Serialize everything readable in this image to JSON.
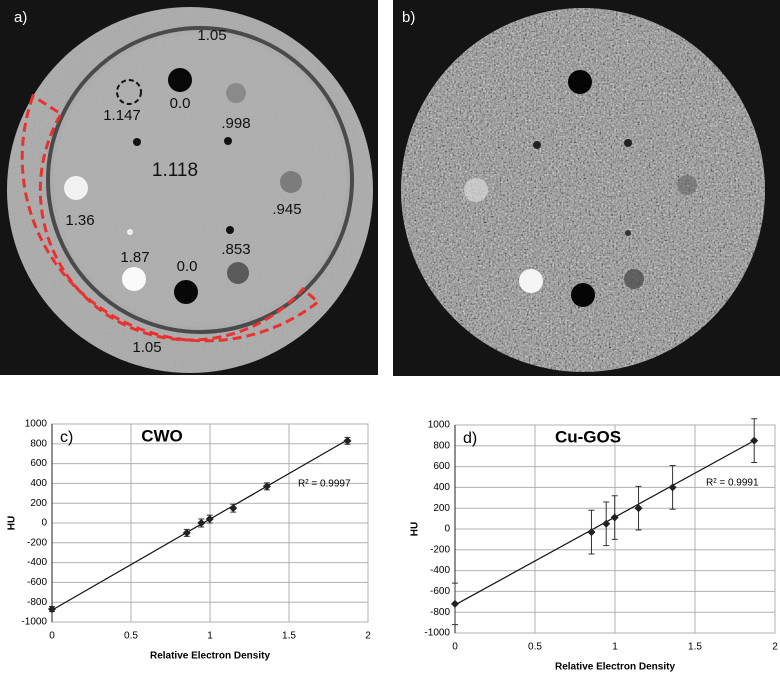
{
  "panels": {
    "a": {
      "label": "a)",
      "annotations": [
        "1.05",
        "0.0",
        "1.147",
        ".998",
        "1.118",
        "1.36",
        ".945",
        "1.87",
        "0.0",
        ".853",
        "1.05"
      ]
    },
    "b": {
      "label": "b)"
    }
  },
  "chart_data": [
    {
      "type": "scatter",
      "panel_label": "c)",
      "title": "CWO",
      "x_label": "Relative Electron Density",
      "y_label": "HU",
      "x": [
        0,
        0.853,
        0.945,
        0.998,
        1.147,
        1.36,
        1.87
      ],
      "values": [
        -870,
        -100,
        0,
        40,
        150,
        370,
        830
      ],
      "errors": [
        25,
        35,
        40,
        40,
        40,
        35,
        35
      ],
      "fit": {
        "x": [
          0,
          1.87
        ],
        "values": [
          -880,
          840
        ]
      },
      "annotation": "R² = 0.9997",
      "color": "#222222",
      "xlim": [
        0,
        2
      ],
      "xticks": [
        0,
        0.5,
        1,
        1.5,
        2
      ],
      "ylim": [
        -1000,
        1000
      ],
      "yticks": [
        -1000,
        -800,
        -600,
        -400,
        -200,
        0,
        200,
        400,
        600,
        800,
        1000
      ],
      "grid": true
    },
    {
      "type": "scatter",
      "panel_label": "d)",
      "title": "Cu-GOS",
      "x_label": "Relative Electron Density",
      "y_label": "HU",
      "x": [
        0,
        0.853,
        0.945,
        0.998,
        1.147,
        1.36,
        1.87
      ],
      "values": [
        -720,
        -30,
        50,
        110,
        200,
        400,
        850
      ],
      "errors": [
        200,
        210,
        210,
        210,
        210,
        210,
        210
      ],
      "fit": {
        "x": [
          0,
          1.87
        ],
        "values": [
          -730,
          850
        ]
      },
      "annotation": "R² = 0.9991",
      "color": "#222222",
      "xlim": [
        0,
        2
      ],
      "xticks": [
        0,
        0.5,
        1,
        1.5,
        2
      ],
      "ylim": [
        -1000,
        1000
      ],
      "yticks": [
        -1000,
        -800,
        -600,
        -400,
        -200,
        0,
        200,
        400,
        600,
        800,
        1000
      ],
      "grid": true
    }
  ]
}
